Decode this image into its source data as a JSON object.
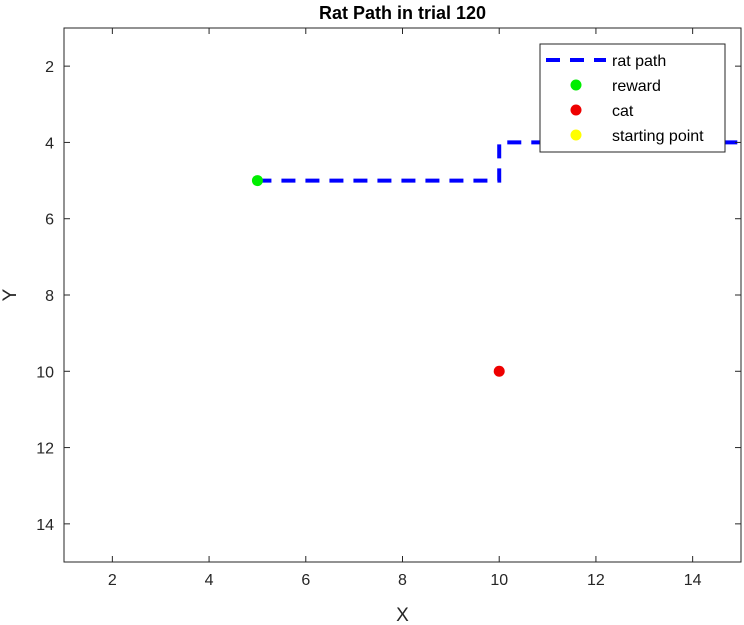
{
  "chart_data": {
    "type": "line",
    "title": "Rat Path in trial 120",
    "xlabel": "X",
    "ylabel": "Y",
    "xlim": [
      1,
      15
    ],
    "ylim": [
      1,
      15
    ],
    "y_reversed": true,
    "grid": false,
    "xticks": [
      2,
      4,
      6,
      8,
      10,
      12,
      14
    ],
    "yticks": [
      2,
      4,
      6,
      8,
      10,
      12,
      14
    ],
    "legend_position": "top-right",
    "series": [
      {
        "name": "rat path",
        "kind": "line",
        "style": "dashed",
        "color": "#0000ff",
        "x": [
          5,
          10,
          10,
          15
        ],
        "y": [
          5,
          5,
          4,
          4
        ]
      },
      {
        "name": "reward",
        "kind": "marker",
        "color": "#00ee00",
        "x": [
          5
        ],
        "y": [
          5
        ]
      },
      {
        "name": "cat",
        "kind": "marker",
        "color": "#ee0000",
        "x": [
          10
        ],
        "y": [
          10
        ]
      },
      {
        "name": "starting point",
        "kind": "marker",
        "color": "#ffff00",
        "x": [],
        "y": []
      }
    ]
  }
}
